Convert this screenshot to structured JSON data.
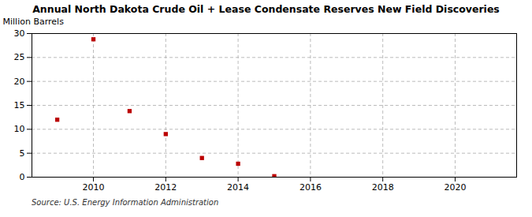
{
  "chart_data": {
    "type": "scatter",
    "title": "Annual North Dakota Crude Oil + Lease Condensate Reserves New Field Discoveries",
    "ylabel": "Million Barrels",
    "source": "Source: U.S. Energy Information Administration",
    "x": [
      2009,
      2010,
      2011,
      2012,
      2013,
      2014,
      2015
    ],
    "values": [
      12.0,
      28.8,
      13.8,
      9.0,
      4.0,
      2.8,
      0.2
    ],
    "color": "#bb0000",
    "marker": "square",
    "xlim": [
      2008.3,
      2021.7
    ],
    "ylim": [
      0,
      30
    ],
    "xticks": [
      2010,
      2012,
      2014,
      2016,
      2018,
      2020
    ],
    "yticks": [
      0,
      5,
      10,
      15,
      20,
      25,
      30
    ],
    "grid": true
  }
}
